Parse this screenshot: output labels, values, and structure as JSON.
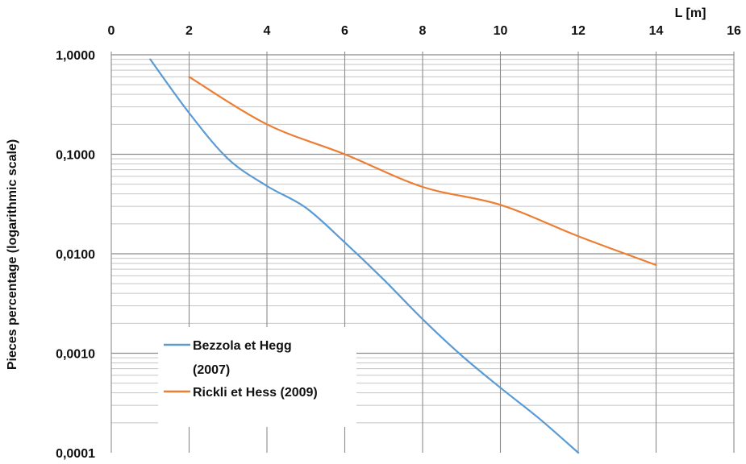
{
  "chart_data": {
    "type": "line",
    "title": "",
    "xlabel": "L [m]",
    "ylabel": "Pieces percentage (logarithmic scale)",
    "xlim": [
      0,
      16
    ],
    "ylim": [
      0.0001,
      1
    ],
    "yscale": "log",
    "x_ticks": [
      0,
      2,
      4,
      6,
      8,
      10,
      12,
      14,
      16
    ],
    "x_tick_labels": [
      "0",
      "2",
      "4",
      "6",
      "8",
      "10",
      "12",
      "14",
      "16"
    ],
    "y_ticks": [
      1,
      0.1,
      0.01,
      0.001,
      0.0001
    ],
    "y_tick_labels": [
      "1,0000",
      "0,1000",
      "0,0100",
      "0,0010",
      "0,0001"
    ],
    "x_axis_position": "top",
    "grid": true,
    "legend_position": "bottom-left",
    "series": [
      {
        "name": "Bezzola et Hegg (2007)",
        "legend_lines": [
          "Bezzola et Hegg",
          "(2007)"
        ],
        "color": "#5B9BD5",
        "x": [
          1,
          2,
          3,
          4,
          5,
          6,
          7,
          8,
          9,
          10,
          11,
          12
        ],
        "y": [
          0.9,
          0.26,
          0.09,
          0.048,
          0.029,
          0.013,
          0.0055,
          0.0022,
          0.00095,
          0.00045,
          0.00022,
          0.0001
        ]
      },
      {
        "name": "Rickli et Hess (2009)",
        "legend_lines": [
          "Rickli et Hess (2009)"
        ],
        "color": "#ED7D31",
        "x": [
          2,
          4,
          6,
          8,
          10,
          12,
          14
        ],
        "y": [
          0.6,
          0.2,
          0.1,
          0.047,
          0.031,
          0.015,
          0.0077
        ]
      }
    ]
  }
}
